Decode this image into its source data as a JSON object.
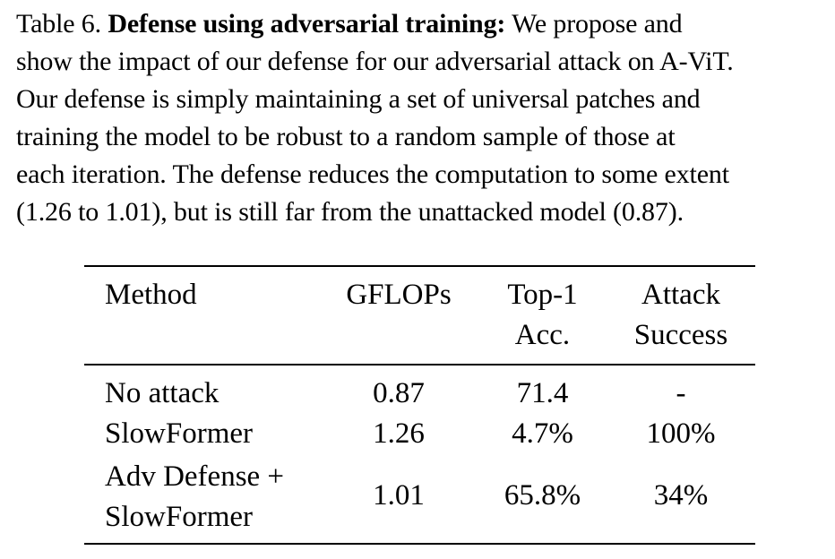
{
  "caption": {
    "label": "Table 6.",
    "bold_title": "Defense using adversarial training:",
    "line1_rest": "We propose and",
    "lines": [
      "show the impact of our defense for our adversarial attack on A-ViT.",
      "Our defense is simply maintaining a set of universal patches and",
      "training the model to be robust to a random sample of those at",
      "each iteration. The defense reduces the computation to some extent",
      "(1.26 to 1.01), but is still far from the unattacked model (0.87)."
    ]
  },
  "table": {
    "headers": {
      "method": "Method",
      "gflops": "GFLOPs",
      "top1": [
        "Top-1",
        "Acc."
      ],
      "attack": [
        "Attack",
        "Success"
      ]
    },
    "rows": [
      {
        "method": [
          "No attack"
        ],
        "gflops": "0.87",
        "top1": "71.4",
        "attack": "-"
      },
      {
        "method": [
          "SlowFormer"
        ],
        "gflops": "1.26",
        "top1": "4.7%",
        "attack": "100%"
      },
      {
        "method": [
          "Adv Defense +",
          "SlowFormer"
        ],
        "gflops": "1.01",
        "top1": "65.8%",
        "attack": "34%"
      }
    ]
  }
}
